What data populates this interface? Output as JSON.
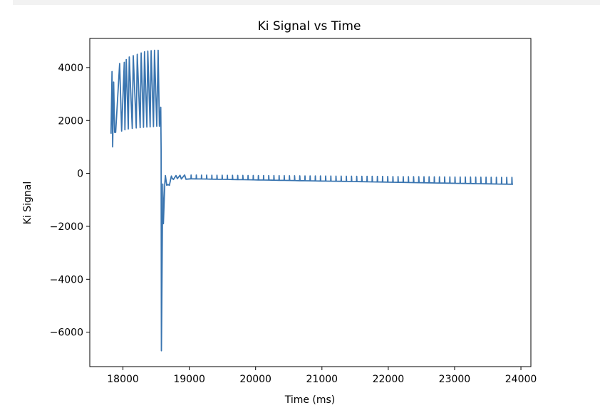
{
  "chart_data": {
    "type": "line",
    "title": "Ki Signal vs Time",
    "xlabel": "Time (ms)",
    "ylabel": "Ki Signal",
    "xlim": [
      17500,
      24150
    ],
    "ylim": [
      -7300,
      5100
    ],
    "xticks": [
      18000,
      19000,
      20000,
      21000,
      22000,
      23000,
      24000
    ],
    "yticks": [
      4000,
      2000,
      0,
      -2000,
      -4000,
      -6000
    ],
    "ytick_labels": [
      "4000",
      "2000",
      "0",
      "−2000",
      "−4000",
      "−6000"
    ],
    "xtick_labels": [
      "18000",
      "19000",
      "20000",
      "21000",
      "22000",
      "23000",
      "24000"
    ],
    "grid": false,
    "series": [
      {
        "color": "#3a75b0",
        "x": [
          17820,
          17835,
          17845,
          17860,
          17875,
          17890,
          17950,
          17980,
          18020,
          18030,
          18050,
          18080,
          18095,
          18140,
          18155,
          18200,
          18215,
          18260,
          18275,
          18310,
          18325,
          18360,
          18375,
          18410,
          18425,
          18460,
          18475,
          18510,
          18530,
          18550,
          18570,
          18575,
          18580,
          18600,
          18610,
          18630,
          18640,
          18660,
          18680,
          18700,
          18730,
          18740,
          18760,
          18800,
          18820,
          18860,
          18880,
          18930,
          18950
        ],
        "y": [
          1500,
          3850,
          1000,
          3450,
          1550,
          1550,
          4150,
          1600,
          4200,
          1650,
          4300,
          1680,
          4400,
          1700,
          4450,
          1720,
          4500,
          1730,
          4550,
          1740,
          4600,
          1750,
          4620,
          1760,
          4640,
          1770,
          4650,
          1780,
          4650,
          1780,
          2500,
          900,
          -6700,
          -400,
          -1900,
          -400,
          -80,
          -450,
          -420,
          -450,
          -100,
          -170,
          -230,
          -80,
          -200,
          -70,
          -210,
          -60,
          -220
        ],
        "periodic_tail": {
          "x_start": 18950,
          "x_end": 23880,
          "period": 78,
          "peak_start": -60,
          "peak_end": -150,
          "trough_start": -200,
          "trough_end": -410
        }
      }
    ]
  }
}
